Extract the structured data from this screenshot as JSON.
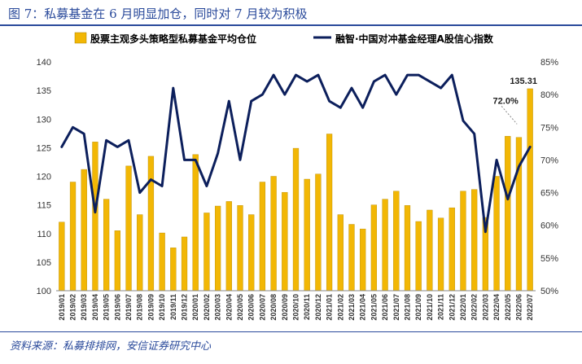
{
  "figure": {
    "title": "图 7：私募基金在 6 月明显加仓，同时对 7 月较为积极",
    "source": "资料来源：私募排排网，安信证券研究中心"
  },
  "chart_data": {
    "type": "bar+line",
    "categories": [
      "2019/01",
      "2019/02",
      "2019/03",
      "2019/04",
      "2019/05",
      "2019/06",
      "2019/07",
      "2019/08",
      "2019/09",
      "2019/10",
      "2019/11",
      "2019/12",
      "2020/01",
      "2020/02",
      "2020/03",
      "2020/04",
      "2020/05",
      "2020/06",
      "2020/07",
      "2020/08",
      "2020/09",
      "2020/10",
      "2020/11",
      "2020/12",
      "2021/01",
      "2021/02",
      "2021/03",
      "2021/04",
      "2021/05",
      "2021/06",
      "2021/07",
      "2021/08",
      "2021/09",
      "2021/10",
      "2021/11",
      "2021/12",
      "2022/01",
      "2022/02",
      "2022/03",
      "2022/04",
      "2022/05",
      "2022/06",
      "2022/07"
    ],
    "series": [
      {
        "name": "股票主观多头策略型私募基金平均仓位",
        "type": "bar",
        "axis": "left",
        "color": "#f2b705",
        "values": [
          112,
          119,
          121.2,
          126,
          116,
          110.5,
          121.8,
          113.3,
          123.5,
          110.1,
          107.5,
          109.4,
          123.8,
          113.6,
          114.8,
          115.6,
          114.9,
          113.3,
          119,
          120,
          117.2,
          124.9,
          119.5,
          120.4,
          127.4,
          113.3,
          111.6,
          110.8,
          115,
          116,
          117.4,
          114.9,
          112.1,
          114.1,
          112.7,
          114.5,
          117.4,
          117.7,
          112.8,
          120,
          127,
          126.8,
          135.31
        ]
      },
      {
        "name": "融智·中国对冲基金经理A股信心指数",
        "type": "line",
        "axis": "right",
        "color": "#0c1f5c",
        "values": [
          72,
          75,
          74,
          62,
          73,
          72,
          73,
          65,
          67,
          66,
          81,
          70,
          70,
          66,
          71,
          79,
          70,
          79,
          80,
          83,
          80,
          83,
          82,
          83,
          79,
          78,
          81,
          78,
          82,
          83,
          80,
          83,
          83,
          82,
          81,
          83,
          76,
          74,
          59,
          70,
          64,
          69,
          72
        ]
      }
    ],
    "y_left": {
      "min": 100,
      "max": 140,
      "step": 5
    },
    "y_right": {
      "min": 50,
      "max": 85,
      "step": 5,
      "format": "percent"
    },
    "annotations": [
      {
        "text": "135.31",
        "series": 0,
        "index": 42
      },
      {
        "text": "72.0%",
        "series": 1,
        "index": 42
      }
    ],
    "legend": "top"
  }
}
